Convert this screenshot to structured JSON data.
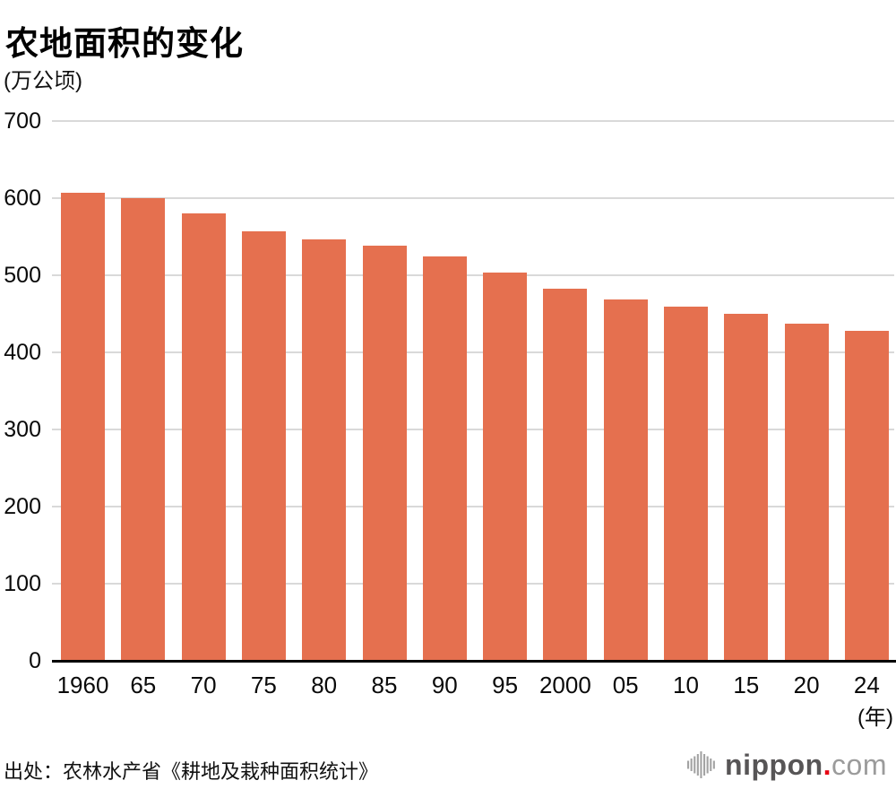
{
  "header": {
    "title": "农地面积的变化",
    "unit_label": "(万公顷)"
  },
  "chart_data": {
    "type": "bar",
    "title": "农地面积的变化",
    "ylabel": "(万公顷)",
    "categories": [
      "1960",
      "65",
      "70",
      "75",
      "80",
      "85",
      "90",
      "95",
      "2000",
      "05",
      "10",
      "15",
      "20",
      "24"
    ],
    "values": [
      607,
      600,
      580,
      557,
      546,
      538,
      524,
      504,
      483,
      469,
      459,
      450,
      437,
      428
    ],
    "ylim": [
      0,
      700
    ],
    "yticks": [
      0,
      100,
      200,
      300,
      400,
      500,
      600,
      700
    ],
    "x_axis_suffix": "(年)",
    "bar_color": "#e5704f",
    "gridline_color": "#d9d9d9",
    "axis_color": "#000000",
    "grid": true,
    "legend": "none"
  },
  "footer": {
    "source": "出处：农林水产省《耕地及栽种面积统计》",
    "logo": {
      "icon": "soundwave-bars-icon",
      "name": "nippon",
      "dot": ".",
      "tld": "com",
      "name_color": "#575556",
      "dot_color": "#e60012",
      "tld_color": "#9b9b9b",
      "icon_color": "#a3a3a3"
    }
  }
}
